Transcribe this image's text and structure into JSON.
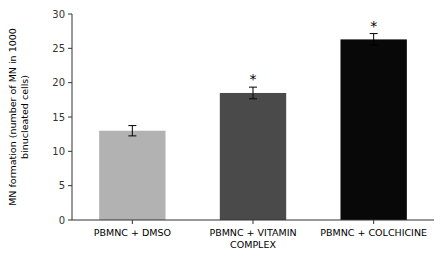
{
  "chart_data": {
    "type": "bar",
    "categories": [
      "PBMNC + DMSO",
      "PBMNC + VITAMIN\nCOMPLEX",
      "PBMNC + COLCHICINE"
    ],
    "values": [
      13.0,
      18.5,
      26.3
    ],
    "errors": [
      0.75,
      0.85,
      0.85
    ],
    "colors": [
      "#b2b2b2",
      "#4a4a4a",
      "#080808"
    ],
    "ylabel": "MN formation (number of MN in 1000\nbinucleated cells)",
    "ylim": [
      0,
      30
    ],
    "yticks": [
      0,
      5,
      10,
      15,
      20,
      25,
      30
    ],
    "annotations": [
      null,
      "*",
      "*"
    ],
    "grid": false
  }
}
